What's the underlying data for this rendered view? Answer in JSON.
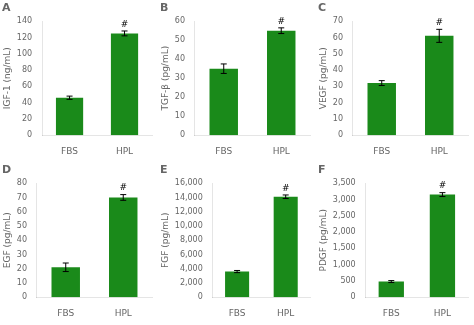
{
  "chart_data": [
    {
      "type": "bar",
      "title": "A",
      "ylabel": "IGF-1 (ng/mL)",
      "categories": [
        "FBS",
        "HPL"
      ],
      "values": [
        46,
        125
      ],
      "errors": [
        2,
        3
      ],
      "color": "#1a8a1a",
      "ylim": [
        0,
        140
      ],
      "yticks": [
        0,
        20,
        40,
        60,
        80,
        100,
        120,
        140
      ],
      "grid": false,
      "annotations": [
        {
          "text": "#",
          "category": "HPL"
        }
      ]
    },
    {
      "type": "bar",
      "title": "B",
      "ylabel": "TGF-β (pg/mL)",
      "categories": [
        "FBS",
        "HPL"
      ],
      "values": [
        35,
        55
      ],
      "errors": [
        2.5,
        1.5
      ],
      "color": "#1a8a1a",
      "ylim": [
        0,
        60
      ],
      "yticks": [
        0,
        10,
        20,
        30,
        40,
        50,
        60
      ],
      "grid": false,
      "annotations": [
        {
          "text": "#",
          "category": "HPL"
        }
      ]
    },
    {
      "type": "bar",
      "title": "C",
      "ylabel": "VEGF (pg/mL)",
      "categories": [
        "FBS",
        "HPL"
      ],
      "values": [
        32,
        61
      ],
      "errors": [
        1.5,
        4
      ],
      "color": "#1a8a1a",
      "ylim": [
        0,
        70
      ],
      "yticks": [
        0,
        10,
        20,
        30,
        40,
        50,
        60,
        70
      ],
      "grid": false,
      "annotations": [
        {
          "text": "#",
          "category": "HPL"
        }
      ]
    },
    {
      "type": "bar",
      "title": "D",
      "ylabel": "EGF (pg/mL)",
      "categories": [
        "FBS",
        "HPL"
      ],
      "values": [
        21,
        70
      ],
      "errors": [
        3,
        2
      ],
      "color": "#1a8a1a",
      "ylim": [
        0,
        80
      ],
      "yticks": [
        0,
        10,
        20,
        30,
        40,
        50,
        60,
        70,
        80
      ],
      "grid": false,
      "annotations": [
        {
          "text": "#",
          "category": "HPL"
        }
      ]
    },
    {
      "type": "bar",
      "title": "E",
      "ylabel": "FGF (pg/mL)",
      "categories": [
        "FBS",
        "HPL"
      ],
      "values": [
        3600,
        14100
      ],
      "errors": [
        150,
        250
      ],
      "color": "#1a8a1a",
      "ylim": [
        0,
        16000
      ],
      "yticks": [
        0,
        {
          "value": 2000,
          "label": "2,000"
        },
        {
          "value": 4000,
          "label": "4,000"
        },
        {
          "value": 6000,
          "label": "6,000"
        },
        {
          "value": 8000,
          "label": "8,000"
        },
        {
          "value": 10000,
          "label": "10,000"
        },
        {
          "value": 12000,
          "label": "12,000"
        },
        {
          "value": 14000,
          "label": "14,000"
        },
        {
          "value": 16000,
          "label": "16,000"
        }
      ],
      "grid": false,
      "annotations": [
        {
          "text": "#",
          "category": "HPL"
        }
      ]
    },
    {
      "type": "bar",
      "title": "F",
      "ylabel": "PDGF (pg/mL)",
      "categories": [
        "FBS",
        "HPL"
      ],
      "values": [
        480,
        3150
      ],
      "errors": [
        30,
        60
      ],
      "color": "#1a8a1a",
      "ylim": [
        0,
        3500
      ],
      "yticks": [
        0,
        500,
        {
          "value": 1000,
          "label": "1,000"
        },
        {
          "value": 1500,
          "label": "1,500"
        },
        {
          "value": 2000,
          "label": "2,000"
        },
        {
          "value": 2500,
          "label": "2,500"
        },
        {
          "value": 3000,
          "label": "3,000"
        },
        {
          "value": 3500,
          "label": "3,500"
        }
      ],
      "grid": false,
      "annotations": [
        {
          "text": "#",
          "category": "HPL"
        }
      ]
    }
  ]
}
